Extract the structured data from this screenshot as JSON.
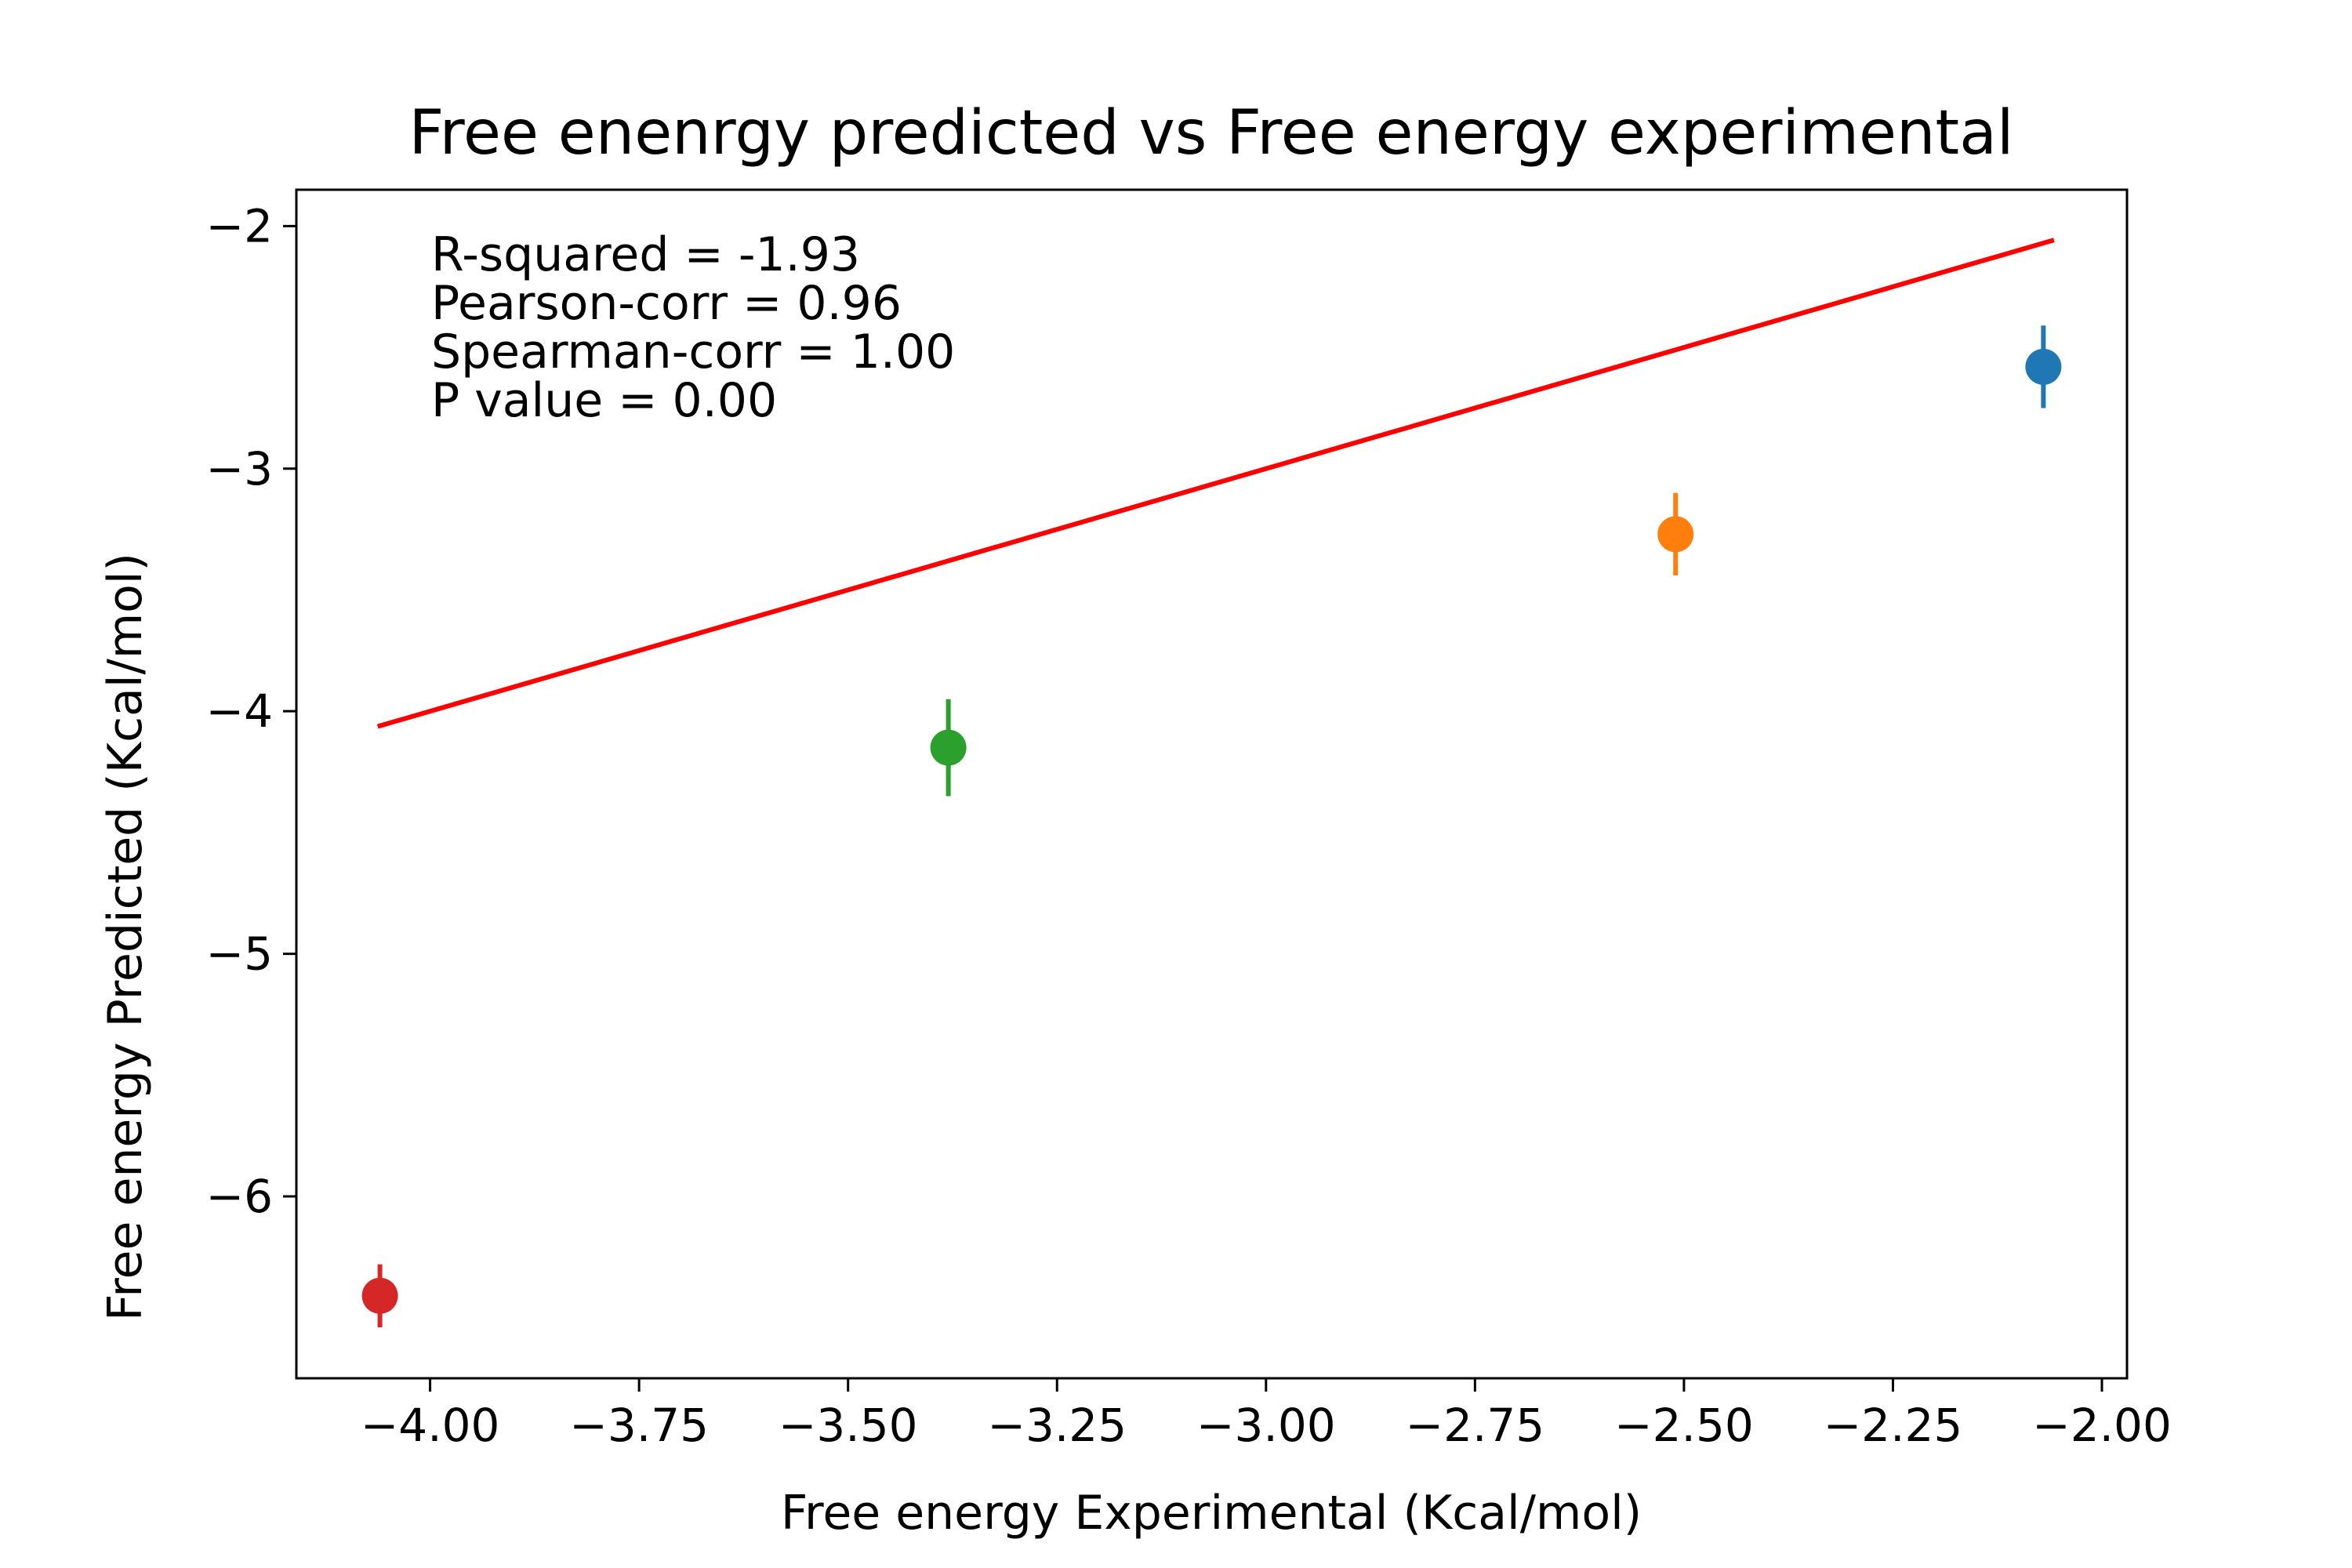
{
  "chart_data": {
    "type": "scatter",
    "title": "Free enenrgy predicted vs Free energy experimental",
    "xlabel": "Free energy Experimental (Kcal/mol)",
    "ylabel": "Free energy Predicted (Kcal/mol)",
    "xlim": [
      -4.16,
      -1.97
    ],
    "ylim": [
      -6.75,
      -1.85
    ],
    "xticks": [
      -4.0,
      -3.75,
      -3.5,
      -3.25,
      -3.0,
      -2.75,
      -2.5,
      -2.25,
      -2.0
    ],
    "xtick_labels": [
      "−4.00",
      "−3.75",
      "−3.50",
      "−3.25",
      "−3.00",
      "−2.75",
      "−2.50",
      "−2.25",
      "−2.00"
    ],
    "yticks": [
      -2,
      -3,
      -4,
      -5,
      -6
    ],
    "ytick_labels": [
      "−2",
      "−3",
      "−4",
      "−5",
      "−6"
    ],
    "points": [
      {
        "x": -2.07,
        "y": -2.58,
        "yerr": 0.17,
        "color": "#1f77b4"
      },
      {
        "x": -2.51,
        "y": -3.27,
        "yerr": 0.17,
        "color": "#ff7f0e"
      },
      {
        "x": -3.38,
        "y": -4.15,
        "yerr": 0.2,
        "color": "#2ca02c"
      },
      {
        "x": -4.06,
        "y": -6.41,
        "yerr": 0.13,
        "color": "#d62728"
      }
    ],
    "fit_line": {
      "x": [
        -4.06,
        -2.06
      ],
      "y": [
        -4.06,
        -2.06
      ],
      "color": "#ff0000"
    },
    "annotations": [
      "R-squared = -1.93",
      "Pearson-corr = 0.96",
      "Spearman-corr = 1.00",
      "P value = 0.00"
    ],
    "grid": false
  }
}
